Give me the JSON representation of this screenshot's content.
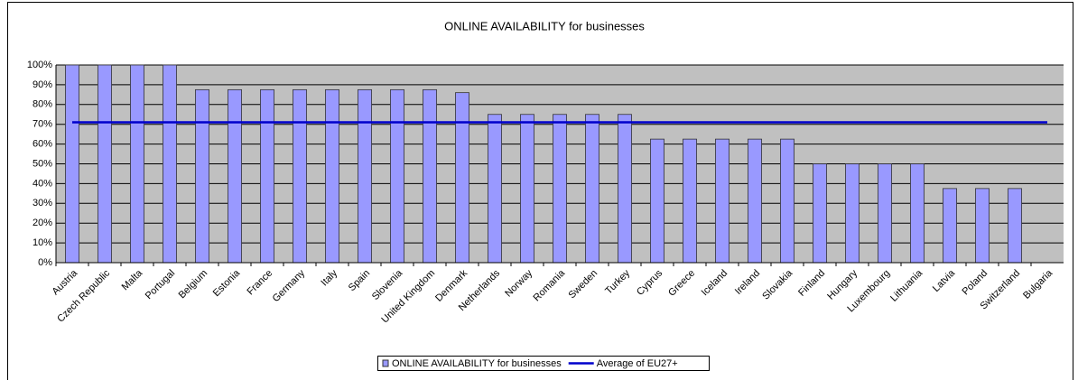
{
  "chart_data": {
    "type": "bar",
    "title": "ONLINE AVAILABILITY for businesses",
    "categories": [
      "Austria",
      "Czech Republic",
      "Malta",
      "Portugal",
      "Belgium",
      "Estonia",
      "France",
      "Germany",
      "Italy",
      "Spain",
      "Slovenia",
      "United Kingdom",
      "Denmark",
      "Netherlands",
      "Norway",
      "Romania",
      "Sweden",
      "Turkey",
      "Cyprus",
      "Greece",
      "Iceland",
      "Ireland",
      "Slovakia",
      "Finland",
      "Hungary",
      "Luxembourg",
      "Lithuania",
      "Latvia",
      "Poland",
      "Switzerland",
      "Bulgaria"
    ],
    "series": [
      {
        "name": "ONLINE AVAILABILITY for businesses",
        "type": "bar",
        "color": "#9999ff",
        "values": [
          100,
          100,
          100,
          100,
          87.5,
          87.5,
          87.5,
          87.5,
          87.5,
          87.5,
          87.5,
          87.5,
          86,
          75,
          75,
          75,
          75,
          75,
          62.5,
          62.5,
          62.5,
          62.5,
          62.5,
          50,
          50,
          50,
          50,
          37.5,
          37.5,
          37.5,
          0
        ]
      },
      {
        "name": "Average of EU27+",
        "type": "line",
        "color": "#0000cc",
        "values": [
          71,
          71,
          71,
          71,
          71,
          71,
          71,
          71,
          71,
          71,
          71,
          71,
          71,
          71,
          71,
          71,
          71,
          71,
          71,
          71,
          71,
          71,
          71,
          71,
          71,
          71,
          71,
          71,
          71,
          71,
          71
        ]
      }
    ],
    "ylim": [
      0,
      100
    ],
    "yticks": [
      {
        "value": 0,
        "label": "0%"
      },
      {
        "value": 10,
        "label": "10%"
      },
      {
        "value": 20,
        "label": "20%"
      },
      {
        "value": 30,
        "label": "30%"
      },
      {
        "value": 40,
        "label": "40%"
      },
      {
        "value": 50,
        "label": "50%"
      },
      {
        "value": 60,
        "label": "60%"
      },
      {
        "value": 70,
        "label": "70%"
      },
      {
        "value": 80,
        "label": "80%"
      },
      {
        "value": 90,
        "label": "90%"
      },
      {
        "value": 100,
        "label": "100%"
      }
    ],
    "grid": true,
    "legend": "bottom"
  }
}
